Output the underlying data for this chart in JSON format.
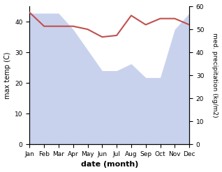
{
  "months": [
    "Jan",
    "Feb",
    "Mar",
    "Apr",
    "May",
    "Jun",
    "Jul",
    "Aug",
    "Sep",
    "Oct",
    "Nov",
    "Dec"
  ],
  "month_indices": [
    0,
    1,
    2,
    3,
    4,
    5,
    6,
    7,
    8,
    9,
    10,
    11
  ],
  "temp": [
    43,
    38.5,
    38.5,
    38.5,
    37.5,
    35,
    35.5,
    42,
    39,
    41,
    41,
    39
  ],
  "precip_right": [
    57,
    57,
    57,
    50,
    41,
    32,
    32,
    35,
    29,
    29,
    50,
    57
  ],
  "temp_color": "#c0504d",
  "precip_fill_color": "#b8c4e8",
  "temp_ylim": [
    0,
    45
  ],
  "precip_ylim": [
    0,
    60
  ],
  "temp_yticks": [
    0,
    10,
    20,
    30,
    40
  ],
  "precip_yticks": [
    0,
    10,
    20,
    30,
    40,
    50,
    60
  ],
  "xlabel": "date (month)",
  "ylabel_left": "max temp (C)",
  "ylabel_right": "med. precipitation (kg/m2)",
  "background_color": "#ffffff",
  "precip_alpha": 0.75
}
